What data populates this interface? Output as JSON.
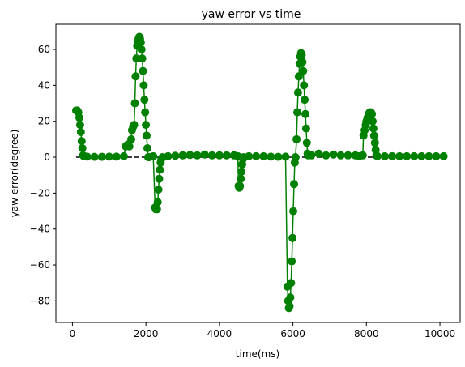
{
  "chart_data": {
    "type": "line",
    "title": "yaw error vs time",
    "xlabel": "time(ms)",
    "ylabel": "yaw error(degree)",
    "xlim": [
      -450,
      10550
    ],
    "ylim": [
      -92,
      74
    ],
    "xticks": [
      0,
      2000,
      4000,
      6000,
      8000,
      10000
    ],
    "yticks": [
      -80,
      -60,
      -40,
      -20,
      0,
      20,
      40,
      60
    ],
    "grid": false,
    "legend": "none",
    "colors": {
      "series": "#008000",
      "reference": "#000000"
    },
    "reference_line": {
      "x": [
        100,
        10100
      ],
      "y": [
        0,
        0
      ],
      "style": "dashed"
    },
    "series": [
      {
        "marker": "circle",
        "points": [
          [
            100,
            26
          ],
          [
            130,
            26
          ],
          [
            160,
            25
          ],
          [
            190,
            22
          ],
          [
            210,
            18
          ],
          [
            230,
            14
          ],
          [
            250,
            9
          ],
          [
            270,
            5
          ],
          [
            290,
            1
          ],
          [
            310,
            0.5
          ],
          [
            400,
            0.3
          ],
          [
            600,
            0.2
          ],
          [
            800,
            0.2
          ],
          [
            1000,
            0.3
          ],
          [
            1200,
            0.3
          ],
          [
            1400,
            0.5
          ],
          [
            1450,
            6
          ],
          [
            1500,
            7
          ],
          [
            1550,
            6
          ],
          [
            1600,
            10
          ],
          [
            1620,
            15
          ],
          [
            1650,
            17
          ],
          [
            1680,
            18
          ],
          [
            1700,
            30
          ],
          [
            1720,
            45
          ],
          [
            1740,
            55
          ],
          [
            1760,
            62
          ],
          [
            1780,
            65
          ],
          [
            1800,
            66
          ],
          [
            1820,
            67
          ],
          [
            1840,
            66
          ],
          [
            1860,
            64
          ],
          [
            1880,
            60
          ],
          [
            1900,
            55
          ],
          [
            1920,
            48
          ],
          [
            1940,
            40
          ],
          [
            1960,
            32
          ],
          [
            1980,
            25
          ],
          [
            2000,
            18
          ],
          [
            2020,
            12
          ],
          [
            2040,
            5
          ],
          [
            2060,
            0
          ],
          [
            2100,
            0
          ],
          [
            2200,
            0.5
          ],
          [
            2250,
            -28
          ],
          [
            2270,
            -29
          ],
          [
            2300,
            -29
          ],
          [
            2320,
            -25
          ],
          [
            2340,
            -18
          ],
          [
            2360,
            -12
          ],
          [
            2380,
            -7
          ],
          [
            2400,
            -3
          ],
          [
            2420,
            -1
          ],
          [
            2450,
            0
          ],
          [
            2600,
            0.5
          ],
          [
            2800,
            0.8
          ],
          [
            3000,
            1
          ],
          [
            3200,
            1.2
          ],
          [
            3400,
            1
          ],
          [
            3600,
            1.5
          ],
          [
            3800,
            1
          ],
          [
            4000,
            1
          ],
          [
            4200,
            1
          ],
          [
            4400,
            1
          ],
          [
            4500,
            0.5
          ],
          [
            4520,
            -16
          ],
          [
            4540,
            -17
          ],
          [
            4560,
            -16
          ],
          [
            4580,
            -12
          ],
          [
            4600,
            -8
          ],
          [
            4620,
            -4
          ],
          [
            4640,
            -1
          ],
          [
            4660,
            0
          ],
          [
            4800,
            0.5
          ],
          [
            5000,
            0.5
          ],
          [
            5200,
            0.5
          ],
          [
            5400,
            0.3
          ],
          [
            5600,
            0.2
          ],
          [
            5800,
            0.3
          ],
          [
            5850,
            -72
          ],
          [
            5870,
            -80
          ],
          [
            5890,
            -84
          ],
          [
            5910,
            -83
          ],
          [
            5930,
            -78
          ],
          [
            5950,
            -70
          ],
          [
            5970,
            -58
          ],
          [
            5990,
            -45
          ],
          [
            6010,
            -30
          ],
          [
            6030,
            -15
          ],
          [
            6050,
            -3
          ],
          [
            6070,
            0
          ],
          [
            6100,
            10
          ],
          [
            6120,
            25
          ],
          [
            6140,
            36
          ],
          [
            6160,
            45
          ],
          [
            6180,
            52
          ],
          [
            6200,
            56
          ],
          [
            6220,
            58
          ],
          [
            6240,
            57
          ],
          [
            6260,
            53
          ],
          [
            6280,
            48
          ],
          [
            6300,
            40
          ],
          [
            6320,
            32
          ],
          [
            6340,
            24
          ],
          [
            6360,
            16
          ],
          [
            6380,
            8
          ],
          [
            6400,
            2
          ],
          [
            6420,
            1
          ],
          [
            6500,
            1
          ],
          [
            6700,
            2
          ],
          [
            6900,
            1
          ],
          [
            7100,
            1.5
          ],
          [
            7300,
            1
          ],
          [
            7500,
            1
          ],
          [
            7700,
            1
          ],
          [
            7800,
            0.5
          ],
          [
            7900,
            1
          ],
          [
            7920,
            12
          ],
          [
            7950,
            15
          ],
          [
            7980,
            18
          ],
          [
            8000,
            20
          ],
          [
            8030,
            22
          ],
          [
            8060,
            24
          ],
          [
            8090,
            25
          ],
          [
            8120,
            25
          ],
          [
            8150,
            24
          ],
          [
            8170,
            20
          ],
          [
            8190,
            16
          ],
          [
            8210,
            12
          ],
          [
            8230,
            8
          ],
          [
            8250,
            4
          ],
          [
            8270,
            1
          ],
          [
            8300,
            0.5
          ],
          [
            8500,
            0.5
          ],
          [
            8700,
            0.5
          ],
          [
            8900,
            0.5
          ],
          [
            9100,
            0.5
          ],
          [
            9300,
            0.5
          ],
          [
            9500,
            0.5
          ],
          [
            9700,
            0.5
          ],
          [
            9900,
            0.5
          ],
          [
            10100,
            0.5
          ]
        ]
      }
    ]
  }
}
